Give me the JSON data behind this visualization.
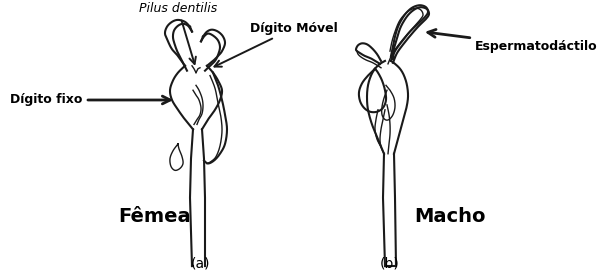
{
  "bg_color": "#ffffff",
  "fig_width": 5.99,
  "fig_height": 2.73,
  "dpi": 100,
  "labels": {
    "pilus_dentilis": "Pilus dentilis",
    "digito_movel": "Dígito Móvel",
    "digito_fixo": "Dígito fixo",
    "espermatodactilo": "Espermatodáctilo",
    "femea": "Fêmea",
    "macho": "Macho",
    "sub_a": "(a)",
    "sub_b": "(b)"
  },
  "text_color": "#000000",
  "line_color": "#1a1a1a"
}
